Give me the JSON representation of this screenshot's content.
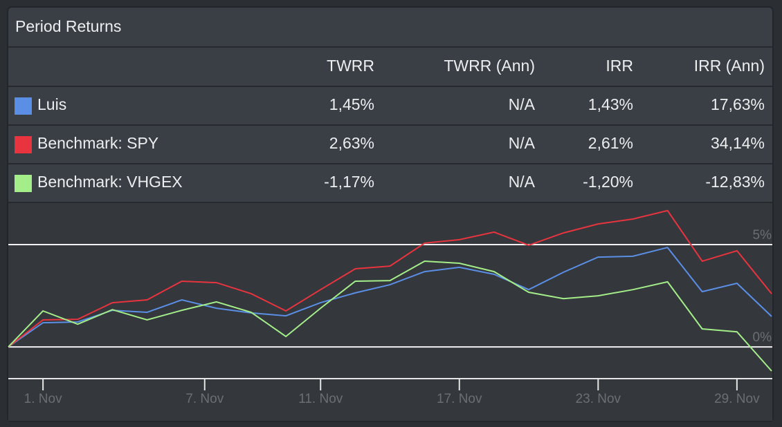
{
  "table": {
    "title": "Period Returns",
    "columns": [
      "TWRR",
      "TWRR (Ann)",
      "IRR",
      "IRR (Ann)"
    ],
    "rows": [
      [
        "1,45%",
        "N/A",
        "1,43%",
        "17,63%"
      ],
      [
        "2,63%",
        "N/A",
        "2,61%",
        "34,14%"
      ],
      [
        "-1,17%",
        "N/A",
        "-1,20%",
        "-12,83%"
      ]
    ]
  },
  "chart_data": {
    "type": "line",
    "x": [
      0,
      1,
      2,
      3,
      4,
      5,
      6,
      7,
      8,
      9,
      10,
      11,
      12,
      13,
      14,
      15,
      16,
      17,
      18,
      19,
      20,
      21,
      22
    ],
    "xlim": [
      0,
      22
    ],
    "xticks": [
      {
        "value": 1,
        "label": "1. Nov"
      },
      {
        "value": 5.66,
        "label": "7. Nov"
      },
      {
        "value": 9,
        "label": "11. Nov"
      },
      {
        "value": 13,
        "label": "17. Nov"
      },
      {
        "value": 17,
        "label": "23. Nov"
      },
      {
        "value": 21,
        "label": "29. Nov"
      }
    ],
    "ylim": [
      -1.55,
      7.06
    ],
    "yticks": [
      {
        "value": 0,
        "label": "0%"
      },
      {
        "value": 5,
        "label": "5%"
      }
    ],
    "grid": true,
    "series": [
      {
        "name": "Luis",
        "color": "#5b8fe6",
        "values": [
          0,
          1.18,
          1.22,
          1.79,
          1.69,
          2.3,
          1.89,
          1.66,
          1.52,
          2.16,
          2.64,
          3.04,
          3.68,
          3.89,
          3.55,
          2.8,
          3.65,
          4.39,
          4.43,
          4.86,
          2.7,
          3.11,
          1.49
        ]
      },
      {
        "name": "Benchmark: SPY",
        "color": "#e8343e",
        "values": [
          0,
          1.32,
          1.35,
          2.16,
          2.3,
          3.21,
          3.14,
          2.6,
          1.76,
          2.8,
          3.82,
          3.95,
          5.07,
          5.24,
          5.61,
          4.97,
          5.57,
          6.01,
          6.25,
          6.66,
          4.19,
          4.7,
          2.6
        ]
      },
      {
        "name": "Benchmark: VHGEX",
        "color": "#a4ee8a",
        "values": [
          0,
          1.76,
          1.11,
          1.82,
          1.32,
          1.79,
          2.2,
          1.69,
          0.51,
          1.89,
          3.21,
          3.24,
          4.19,
          4.09,
          3.68,
          2.67,
          2.36,
          2.5,
          2.8,
          3.18,
          0.88,
          0.74,
          -1.18
        ]
      }
    ]
  }
}
